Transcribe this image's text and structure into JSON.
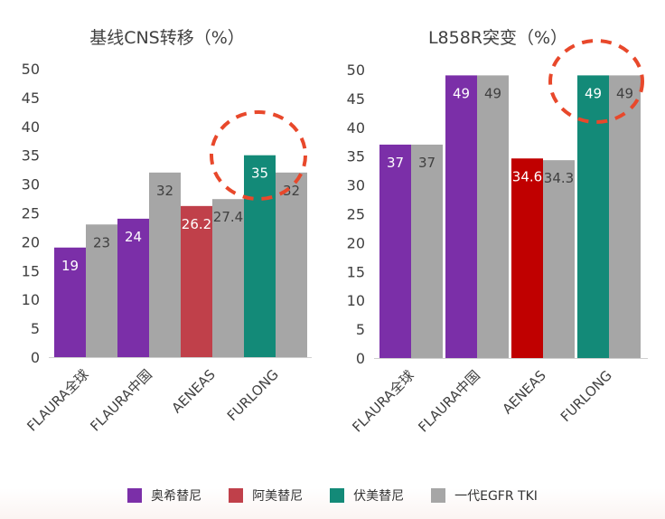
{
  "legend": {
    "items": [
      {
        "label": "奥希替尼",
        "color": "#7b2fa8"
      },
      {
        "label": "阿美替尼",
        "color": "#c0404a"
      },
      {
        "label": "伏美替尼",
        "color": "#138a78"
      },
      {
        "label": "一代EGFR TKI",
        "color": "#a6a6a6"
      }
    ]
  },
  "chart_data": [
    {
      "type": "bar",
      "title": "基线CNS转移（%）",
      "categories": [
        "FLAURA全球",
        "FLAURA中国",
        "AENEAS",
        "FURLONG"
      ],
      "ylim": [
        0,
        50
      ],
      "yticks": [
        0,
        5,
        10,
        15,
        20,
        25,
        30,
        35,
        40,
        45,
        50
      ],
      "grid": false,
      "highlight_category": "FURLONG",
      "groups": [
        {
          "category": "FLAURA全球",
          "bars": [
            {
              "series": "奥希替尼",
              "value": 19,
              "label": "19"
            },
            {
              "series": "一代EGFR TKI",
              "value": 23,
              "label": "23"
            }
          ]
        },
        {
          "category": "FLAURA中国",
          "bars": [
            {
              "series": "奥希替尼",
              "value": 24,
              "label": "24"
            },
            {
              "series": "一代EGFR TKI",
              "value": 32,
              "label": "32"
            }
          ]
        },
        {
          "category": "AENEAS",
          "bars": [
            {
              "series": "阿美替尼",
              "value": 26.2,
              "label": "26.2"
            },
            {
              "series": "一代EGFR TKI",
              "value": 27.4,
              "label": "27.4"
            }
          ]
        },
        {
          "category": "FURLONG",
          "bars": [
            {
              "series": "伏美替尼",
              "value": 35,
              "label": "35"
            },
            {
              "series": "一代EGFR TKI",
              "value": 32,
              "label": "32"
            }
          ]
        }
      ]
    },
    {
      "type": "bar",
      "title": "L858R突变（%）",
      "categories": [
        "FLAURA全球",
        "FLAURA中国",
        "AENEAS",
        "FURLONG"
      ],
      "ylim": [
        0,
        50
      ],
      "yticks": [
        0,
        5,
        10,
        15,
        20,
        25,
        30,
        35,
        40,
        45,
        50
      ],
      "grid": false,
      "highlight_category": "FURLONG",
      "groups": [
        {
          "category": "FLAURA全球",
          "bars": [
            {
              "series": "奥希替尼",
              "value": 37,
              "label": "37"
            },
            {
              "series": "一代EGFR TKI",
              "value": 37,
              "label": "37"
            }
          ]
        },
        {
          "category": "FLAURA中国",
          "bars": [
            {
              "series": "奥希替尼",
              "value": 49,
              "label": "49"
            },
            {
              "series": "一代EGFR TKI",
              "value": 49,
              "label": "49"
            }
          ]
        },
        {
          "category": "AENEAS",
          "bars": [
            {
              "series": "阿美替尼",
              "value": 34.6,
              "label": "34.6",
              "color": "#c00000"
            },
            {
              "series": "一代EGFR TKI",
              "value": 34.3,
              "label": "34.3"
            }
          ]
        },
        {
          "category": "FURLONG",
          "bars": [
            {
              "series": "伏美替尼",
              "value": 49,
              "label": "49"
            },
            {
              "series": "一代EGFR TKI",
              "value": 49,
              "label": "49"
            }
          ]
        }
      ]
    }
  ]
}
